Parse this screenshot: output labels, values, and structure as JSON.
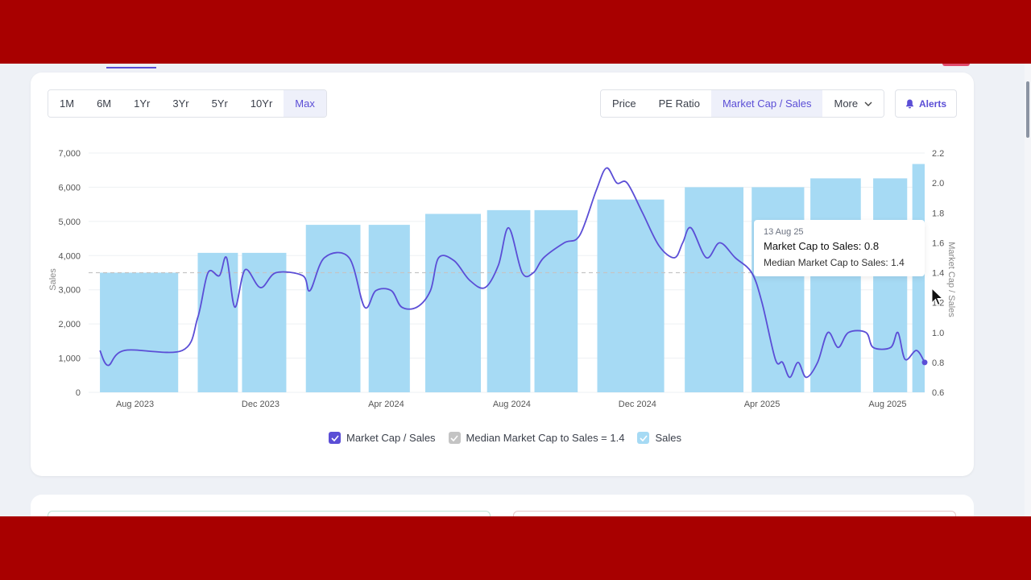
{
  "range_buttons": [
    {
      "label": "1M",
      "active": false
    },
    {
      "label": "6M",
      "active": false
    },
    {
      "label": "1Yr",
      "active": false
    },
    {
      "label": "3Yr",
      "active": false
    },
    {
      "label": "5Yr",
      "active": false
    },
    {
      "label": "10Yr",
      "active": false
    },
    {
      "label": "Max",
      "active": true
    }
  ],
  "metric_buttons": [
    {
      "label": "Price",
      "active": false
    },
    {
      "label": "PE Ratio",
      "active": false
    },
    {
      "label": "Market Cap / Sales",
      "active": true
    },
    {
      "label": "More",
      "active": false
    }
  ],
  "alerts_label": "Alerts",
  "tooltip": {
    "date": "13 Aug 25",
    "main": "Market Cap to Sales: 0.8",
    "sub": "Median Market Cap to Sales: 1.4"
  },
  "legend": {
    "market_cap_sales": "Market Cap / Sales",
    "median": "Median Market Cap to Sales = 1.4",
    "sales": "Sales"
  },
  "colors": {
    "accent": "#5b4ed6",
    "bar": "#a6daf4",
    "median_line": "#c4c4c4"
  },
  "chart_data": {
    "type": "bar",
    "x_ticks": [
      "Aug 2023",
      "Dec 2023",
      "Apr 2024",
      "Aug 2024",
      "Dec 2024",
      "Apr 2025",
      "Aug 2025"
    ],
    "y_left": {
      "label": "Sales",
      "range": [
        0,
        7000
      ],
      "ticks": [
        "0",
        "1,000",
        "2,000",
        "3,000",
        "4,000",
        "5,000",
        "6,000",
        "7,000"
      ]
    },
    "y_right": {
      "label": "Market Cap / Sales",
      "range": [
        0.6,
        2.2
      ],
      "ticks": [
        "0.6",
        "0.8",
        "1.0",
        "1.2",
        "1.4",
        "1.6",
        "1.8",
        "2.0",
        "2.2"
      ]
    },
    "median": 1.4,
    "sales_bars": [
      {
        "period": "Jun–Sep 2023",
        "value": 3500
      },
      {
        "period": "Sep–Nov 2023",
        "value": 4080
      },
      {
        "period": "Nov 2023–Jan 2024",
        "value": 4080
      },
      {
        "period": "Jan–Mar 2024",
        "value": 4900
      },
      {
        "period": "Mar–May 2024",
        "value": 4900
      },
      {
        "period": "May–Jul 2024",
        "value": 5220
      },
      {
        "period": "Jul–Aug 2024",
        "value": 5330
      },
      {
        "period": "Aug–Sep 2024",
        "value": 5330
      },
      {
        "period": "Oct–Dec 2024",
        "value": 5640
      },
      {
        "period": "Dec 2024–Mar 2025",
        "value": 6000
      },
      {
        "period": "Mar–May 2025",
        "value": 6000
      },
      {
        "period": "May–Jul 2025",
        "value": 6260
      },
      {
        "period": "Jul–Aug 2025",
        "value": 6260
      },
      {
        "period": "Aug 2025",
        "value": 6680
      }
    ],
    "market_cap_sales_series": [
      [
        "2023-07-12",
        0.88
      ],
      [
        "2023-07-20",
        0.78
      ],
      [
        "2023-08-05",
        0.88
      ],
      [
        "2023-09-30",
        0.88
      ],
      [
        "2023-10-15",
        1.1
      ],
      [
        "2023-10-25",
        1.4
      ],
      [
        "2023-11-05",
        1.38
      ],
      [
        "2023-11-12",
        1.5
      ],
      [
        "2023-11-20",
        1.17
      ],
      [
        "2023-11-30",
        1.42
      ],
      [
        "2023-12-15",
        1.3
      ],
      [
        "2023-12-30",
        1.4
      ],
      [
        "2024-01-25",
        1.38
      ],
      [
        "2024-02-01",
        1.28
      ],
      [
        "2024-02-15",
        1.5
      ],
      [
        "2024-03-10",
        1.5
      ],
      [
        "2024-03-25",
        1.17
      ],
      [
        "2024-04-05",
        1.28
      ],
      [
        "2024-04-20",
        1.28
      ],
      [
        "2024-04-30",
        1.17
      ],
      [
        "2024-05-15",
        1.17
      ],
      [
        "2024-05-28",
        1.28
      ],
      [
        "2024-06-05",
        1.5
      ],
      [
        "2024-06-20",
        1.48
      ],
      [
        "2024-07-05",
        1.35
      ],
      [
        "2024-07-20",
        1.3
      ],
      [
        "2024-08-02",
        1.45
      ],
      [
        "2024-08-12",
        1.7
      ],
      [
        "2024-08-25",
        1.4
      ],
      [
        "2024-09-05",
        1.4
      ],
      [
        "2024-09-15",
        1.5
      ],
      [
        "2024-10-05",
        1.6
      ],
      [
        "2024-10-20",
        1.65
      ],
      [
        "2024-11-05",
        1.95
      ],
      [
        "2024-11-15",
        2.1
      ],
      [
        "2024-11-25",
        2.0
      ],
      [
        "2024-12-05",
        2.0
      ],
      [
        "2024-12-20",
        1.8
      ],
      [
        "2025-01-05",
        1.58
      ],
      [
        "2025-01-20",
        1.5
      ],
      [
        "2025-01-28",
        1.6
      ],
      [
        "2025-02-05",
        1.7
      ],
      [
        "2025-02-20",
        1.5
      ],
      [
        "2025-03-05",
        1.6
      ],
      [
        "2025-03-20",
        1.5
      ],
      [
        "2025-04-05",
        1.4
      ],
      [
        "2025-04-15",
        1.2
      ],
      [
        "2025-04-28",
        0.82
      ],
      [
        "2025-05-05",
        0.8
      ],
      [
        "2025-05-12",
        0.7
      ],
      [
        "2025-05-20",
        0.8
      ],
      [
        "2025-05-28",
        0.7
      ],
      [
        "2025-06-08",
        0.8
      ],
      [
        "2025-06-18",
        1.0
      ],
      [
        "2025-06-28",
        0.9
      ],
      [
        "2025-07-08",
        1.0
      ],
      [
        "2025-07-25",
        1.0
      ],
      [
        "2025-08-01",
        0.9
      ],
      [
        "2025-08-18",
        0.9
      ],
      [
        "2025-08-25",
        1.0
      ],
      [
        "2025-09-01",
        0.82
      ],
      [
        "2025-09-12",
        0.88
      ],
      [
        "2025-09-20",
        0.8
      ]
    ]
  }
}
